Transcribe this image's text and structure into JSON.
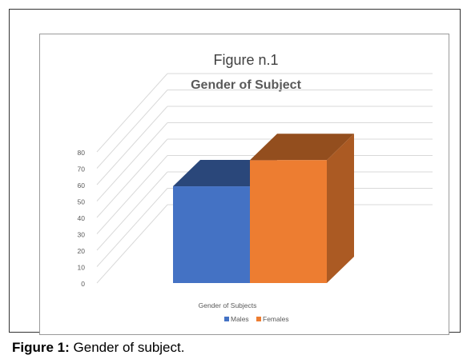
{
  "chart_data": {
    "type": "bar",
    "title": "Figure n.1",
    "subtitle": "Gender of Subject",
    "categories": [
      "Gender of Subjects"
    ],
    "series": [
      {
        "name": "Males",
        "values": [
          59
        ],
        "color": "#4472c4"
      },
      {
        "name": "Females",
        "values": [
          75
        ],
        "color": "#ed7d31"
      }
    ],
    "ylim": [
      0,
      80
    ],
    "yticks": [
      0,
      10,
      20,
      30,
      40,
      50,
      60,
      70,
      80
    ],
    "grid": true,
    "legend": "bottom",
    "style": "3d"
  },
  "caption": {
    "label": "Figure 1:",
    "text": "Gender of subject."
  }
}
